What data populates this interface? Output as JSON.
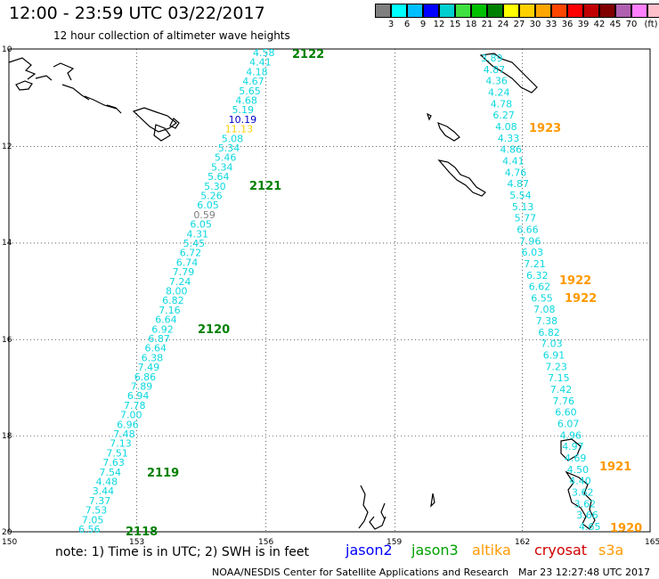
{
  "title": "12:00 - 23:59 UTC 03/22/2017",
  "subtitle": "12 hour collection of altimeter wave heights",
  "legend": {
    "colors": [
      "#7f7f7f",
      "#00ffff",
      "#00bfff",
      "#0000ff",
      "#00cfcf",
      "#40e040",
      "#00c000",
      "#008000",
      "#ffff00",
      "#ffd000",
      "#ffa500",
      "#ff4500",
      "#ff0000",
      "#c00000",
      "#800000",
      "#b060b0",
      "#ff80ff",
      "#ffc0cb",
      "#000000"
    ],
    "labels": [
      "3",
      "6",
      "9",
      "12",
      "15",
      "18",
      "21",
      "24",
      "27",
      "30",
      "33",
      "36",
      "39",
      "42",
      "45",
      "70",
      "(ft)"
    ]
  },
  "axes": {
    "lat_labels": [
      "10",
      "12",
      "14",
      "16",
      "18",
      "20"
    ],
    "lon_labels": [
      "150",
      "153",
      "156",
      "159",
      "162",
      "165"
    ]
  },
  "tracks": [
    {
      "name": "jason3-west",
      "color": "#0bd8e0",
      "values": [
        "4.58",
        "4.41",
        "4.18",
        "4.67",
        "5.65",
        "4.68",
        "5.19",
        "10.19",
        "11.13",
        "5.08",
        "5.34",
        "5.46",
        "5.34",
        "5.64",
        "5.30",
        "5.26",
        "6.05",
        "0.59",
        "6.05",
        "4.31",
        "5.45",
        "6.72",
        "6.74",
        "7.79",
        "7.24",
        "8.00",
        "6.82",
        "7.16",
        "6.64",
        "6.92",
        "6.87",
        "6.64",
        "6.38",
        "7.49",
        "6.86",
        "7.89",
        "6.94",
        "7.78",
        "7.00",
        "6.96",
        "7.48",
        "7.13",
        "7.51",
        "7.63",
        "7.54",
        "4.48",
        "3.44",
        "7.37",
        "7.53",
        "7.05",
        "6.56"
      ],
      "special": {
        "7": "#0000c8",
        "8": "#ffd000",
        "17": "#7f7f7f"
      }
    },
    {
      "name": "jason3-east",
      "color": "#0bd8e0",
      "values": [
        "3.89",
        "4.87",
        "4.36",
        "4.24",
        "4.78",
        "6.27",
        "4.08",
        "4.33",
        "4.86",
        "4.41",
        "4.76",
        "4.87",
        "5.54",
        "5.13",
        "5.77",
        "6.66",
        "7.96",
        "6.03",
        "7.21",
        "6.32",
        "6.62",
        "6.55",
        "7.08",
        "7.38",
        "6.82",
        "7.03",
        "6.91",
        "7.23",
        "7.15",
        "7.42",
        "7.76",
        "6.60",
        "6.07",
        "4.96",
        "4.97",
        "4.69",
        "4.50",
        "4.40",
        "3.62",
        "3.62",
        "3.66",
        "4.65"
      ]
    }
  ],
  "pass_labels": [
    {
      "text": "2122",
      "color": "#008000"
    },
    {
      "text": "2121",
      "color": "#008000"
    },
    {
      "text": "2120",
      "color": "#008000"
    },
    {
      "text": "2119",
      "color": "#008000"
    },
    {
      "text": "2118",
      "color": "#008000"
    },
    {
      "text": "1923",
      "color": "#ff9900"
    },
    {
      "text": "1922",
      "color": "#ff9900"
    },
    {
      "text": "1922",
      "color": "#ff9900"
    },
    {
      "text": "1921",
      "color": "#ff9900"
    },
    {
      "text": "1920",
      "color": "#ff9900"
    }
  ],
  "footer": {
    "note": "note:  1) Time is in UTC;  2) SWH is in feet",
    "satellites": [
      {
        "name": "jason2",
        "color": "#0000ff"
      },
      {
        "name": "jason3",
        "color": "#00a000"
      },
      {
        "name": "altika",
        "color": "#ff9900"
      },
      {
        "name": "cryosat",
        "color": "#d00000"
      },
      {
        "name": "s3a",
        "color": "#ff9900"
      }
    ],
    "credit": "NOAA/NESDIS Center for Satellite Applications and Research",
    "timestamp": "Mar 23 12:27:48 UTC 2017"
  }
}
